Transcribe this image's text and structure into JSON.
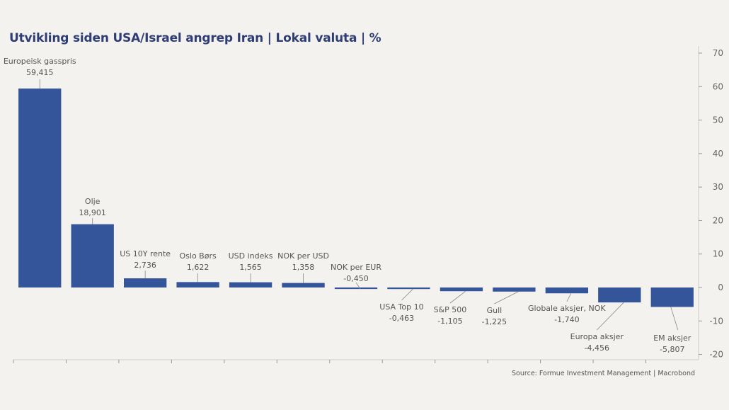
{
  "title": "Utvikling siden USA/Israel angrep Iran | Lokal valuta | %",
  "source": "Source: Formue Investment Management | Macrobond",
  "colors": {
    "bar": "#34559a",
    "axis": "#cccccc",
    "text": "#555555",
    "title": "#2f3d75"
  },
  "chart_data": {
    "type": "bar",
    "title": "Utvikling siden USA/Israel angrep Iran | Lokal valuta | %",
    "xlabel": "",
    "ylabel": "%",
    "ylim": [
      -20,
      70
    ],
    "yticks": [
      70,
      60,
      50,
      40,
      30,
      20,
      10,
      0,
      -10,
      -20
    ],
    "yaxis_position": "right",
    "grid": false,
    "categories": [
      "Europeisk gasspris",
      "Olje",
      "US 10Y rente",
      "Oslo Børs",
      "USD indeks",
      "NOK per USD",
      "NOK per EUR",
      "USA Top 10",
      "S&P 500",
      "Gull",
      "Globale aksjer, NOK",
      "Europa aksjer",
      "EM aksjer"
    ],
    "values": [
      59.415,
      18.901,
      2.736,
      1.622,
      1.565,
      1.358,
      -0.45,
      -0.463,
      -1.105,
      -1.225,
      -1.74,
      -4.456,
      -5.807
    ],
    "data_labels": [
      "59,415",
      "18,901",
      "2,736",
      "1,622",
      "1,565",
      "1,358",
      "-0,450",
      "-0,463",
      "-1,105",
      "-1,225",
      "-1,740",
      "-4,456",
      "-5,807"
    ]
  }
}
